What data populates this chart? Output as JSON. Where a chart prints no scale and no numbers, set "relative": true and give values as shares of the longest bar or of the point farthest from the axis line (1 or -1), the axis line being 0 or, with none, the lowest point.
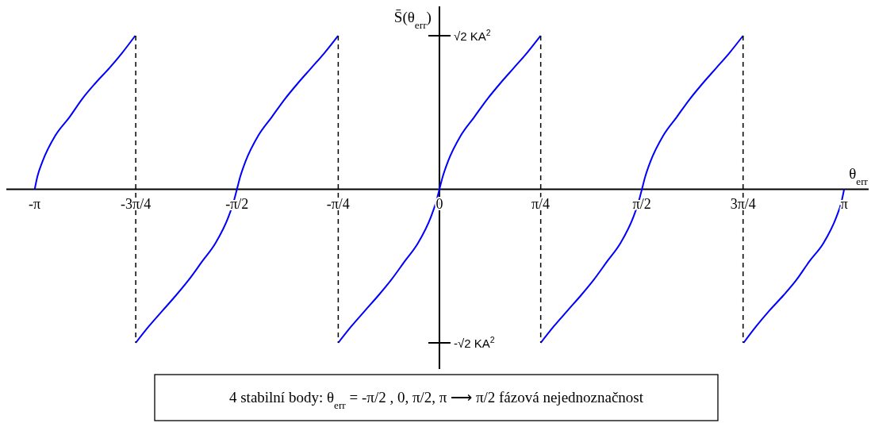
{
  "chart_data": {
    "type": "line",
    "relative": true,
    "ylabel": "S̄(θ$_{err}$)",
    "xlabel": "θ$_{err}$",
    "xlim": [
      -3.36,
      3.33
    ],
    "xticks": [
      {
        "value": -3.1416,
        "label": "-π"
      },
      {
        "value": -2.3562,
        "label": "-3π/4"
      },
      {
        "value": -1.5708,
        "label": "-π/2"
      },
      {
        "value": -0.7854,
        "label": "-π/4"
      },
      0,
      {
        "value": 0.7854,
        "label": "π/4"
      },
      {
        "value": 1.5708,
        "label": "π/2"
      },
      {
        "value": 2.3562,
        "label": "3π/4"
      },
      {
        "value": 3.1416,
        "label": "π"
      }
    ],
    "series": [
      {
        "color": "#0000ff",
        "x": [
          -3.14,
          -3.12,
          -3.08,
          -2.98,
          -2.87,
          -2.77,
          -2.67,
          -2.56,
          -2.46,
          -2.36
        ],
        "values": [
          0,
          0.08,
          0.18,
          0.35,
          0.47,
          0.59,
          0.69,
          0.79,
          0.89,
          1
        ]
      },
      {
        "color": "#0000ff",
        "x": [
          -2.356,
          -2.252,
          -2.148,
          -2.043,
          -1.945,
          -1.841,
          -1.737,
          -1.637,
          -1.596,
          -1.571,
          -1.546,
          -1.505,
          -1.405,
          -1.301,
          -1.197,
          -1.099,
          -0.994,
          -0.89,
          -0.786
        ],
        "values": [
          -1,
          -0.89,
          -0.79,
          -0.69,
          -0.59,
          -0.47,
          -0.35,
          -0.18,
          -0.08,
          0,
          0.08,
          0.18,
          0.35,
          0.47,
          0.59,
          0.69,
          0.79,
          0.89,
          1
        ]
      },
      {
        "color": "#0000ff",
        "x": [
          -0.785,
          -0.681,
          -0.577,
          -0.472,
          -0.374,
          -0.27,
          -0.166,
          -0.066,
          -0.025,
          0,
          0.025,
          0.066,
          0.166,
          0.27,
          0.374,
          0.472,
          0.577,
          0.681,
          0.785
        ],
        "values": [
          -1,
          -0.89,
          -0.79,
          -0.69,
          -0.59,
          -0.47,
          -0.35,
          -0.18,
          -0.08,
          0,
          0.08,
          0.18,
          0.35,
          0.47,
          0.59,
          0.69,
          0.79,
          0.89,
          1
        ]
      },
      {
        "color": "#0000ff",
        "x": [
          0.786,
          0.89,
          0.994,
          1.099,
          1.197,
          1.301,
          1.405,
          1.505,
          1.546,
          1.571,
          1.596,
          1.637,
          1.737,
          1.841,
          1.945,
          2.043,
          2.148,
          2.252,
          2.356
        ],
        "values": [
          -1,
          -0.89,
          -0.79,
          -0.69,
          -0.59,
          -0.47,
          -0.35,
          -0.18,
          -0.08,
          0,
          0.08,
          0.18,
          0.35,
          0.47,
          0.59,
          0.69,
          0.79,
          0.89,
          1
        ]
      },
      {
        "color": "#0000ff",
        "x": [
          2.36,
          2.46,
          2.56,
          2.67,
          2.77,
          2.87,
          2.98,
          3.08,
          3.12,
          3.14
        ],
        "values": [
          -1,
          -0.89,
          -0.79,
          -0.69,
          -0.59,
          -0.47,
          -0.35,
          -0.18,
          -0.08,
          0
        ]
      }
    ],
    "ref_lines": [
      {
        "axis": "x",
        "value": -2.356,
        "color": "#000000",
        "line_style": "dashed"
      },
      {
        "axis": "x",
        "value": -0.785,
        "color": "#000000",
        "line_style": "dashed"
      },
      {
        "axis": "x",
        "value": 0.786,
        "color": "#000000",
        "line_style": "dashed"
      },
      {
        "axis": "x",
        "value": 2.356,
        "color": "#000000",
        "line_style": "dashed"
      }
    ],
    "annotations": [
      "√2 KA$^{2}$",
      "-√2 KA$^{2}$",
      "4 stabilní body: θ$_{err}$ = -π/2 , 0, π/2, π ⟶ π/2 fázová nejednoznačnost"
    ]
  }
}
